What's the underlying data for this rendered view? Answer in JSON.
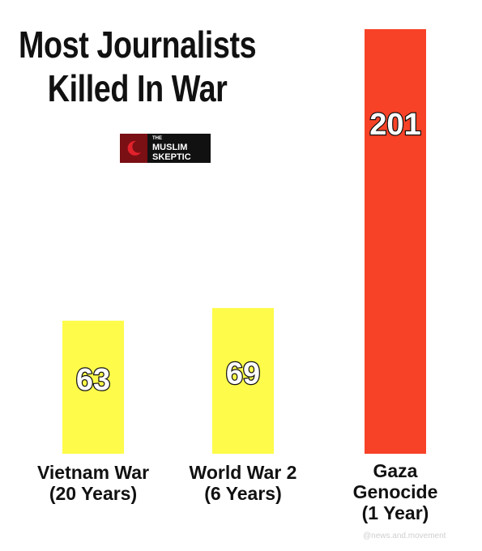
{
  "chart_data": {
    "type": "bar",
    "title_lines": [
      "Most Journalists",
      "Killed In War"
    ],
    "categories": [
      [
        "Vietnam War",
        "(20 Years)"
      ],
      [
        "World War 2",
        "(6 Years)"
      ],
      [
        "Gaza",
        "Genocide",
        "(1 Year)"
      ]
    ],
    "values": [
      63,
      69,
      201
    ],
    "value_labels": [
      "63",
      "69",
      "201"
    ],
    "bar_colors": [
      "#fefb4a",
      "#fefb4a",
      "#f74227"
    ],
    "ylim": [
      0,
      201
    ],
    "grid": false,
    "legend": "none"
  },
  "logo": {
    "line1": "THE",
    "line2": "MUSLIM",
    "line3": "SKEPTIC",
    "icon": "crescent-logo-icon"
  },
  "watermark": "@news.and.movement"
}
